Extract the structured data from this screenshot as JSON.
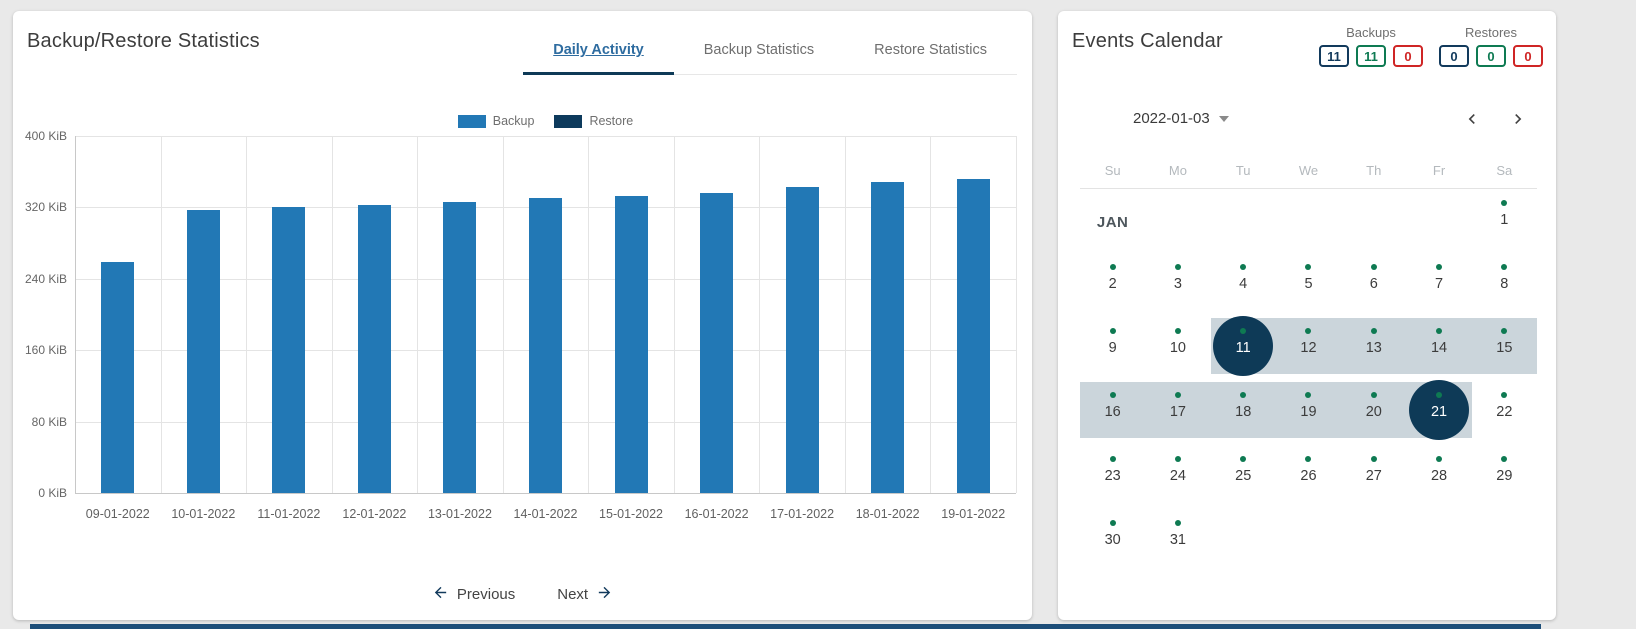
{
  "left_panel": {
    "title": "Backup/Restore Statistics",
    "tabs": [
      {
        "label": "Daily Activity",
        "active": true
      },
      {
        "label": "Backup Statistics",
        "active": false
      },
      {
        "label": "Restore Statistics",
        "active": false
      }
    ],
    "pager": {
      "previous_label": "Previous",
      "next_label": "Next"
    }
  },
  "chart_data": {
    "type": "bar",
    "title": "Daily Activity",
    "categories": [
      "09-01-2022",
      "10-01-2022",
      "11-01-2022",
      "12-01-2022",
      "13-01-2022",
      "14-01-2022",
      "15-01-2022",
      "16-01-2022",
      "17-01-2022",
      "18-01-2022",
      "19-01-2022"
    ],
    "series": [
      {
        "name": "Backup",
        "color": "#2278b5",
        "values": [
          259,
          317,
          320,
          323,
          326,
          330,
          333,
          336,
          343,
          349,
          352
        ]
      },
      {
        "name": "Restore",
        "color": "#0d3a5c",
        "values": [
          0,
          0,
          0,
          0,
          0,
          0,
          0,
          0,
          0,
          0,
          0
        ]
      }
    ],
    "unit": "KiB",
    "ylim": [
      0,
      400
    ],
    "yticks": [
      "400 KiB",
      "320 KiB",
      "240 KiB",
      "160 KiB",
      "80 KiB",
      "0 KiB"
    ],
    "grid": true,
    "legend_position": "top"
  },
  "right_panel": {
    "title": "Events Calendar",
    "counters": {
      "backups": {
        "label": "Backups",
        "badges": [
          {
            "value": "11",
            "role": "total"
          },
          {
            "value": "11",
            "role": "success"
          },
          {
            "value": "0",
            "role": "failed"
          }
        ]
      },
      "restores": {
        "label": "Restores",
        "badges": [
          {
            "value": "0",
            "role": "total"
          },
          {
            "value": "0",
            "role": "success"
          },
          {
            "value": "0",
            "role": "failed"
          }
        ]
      }
    },
    "date_picker": {
      "value": "2022-01-03"
    },
    "calendar": {
      "month_label": "JAN",
      "weekdays": [
        "Su",
        "Mo",
        "Tu",
        "We",
        "Th",
        "Fr",
        "Sa"
      ],
      "selected_days": [
        11,
        21
      ],
      "weeks": [
        {
          "month_label": "JAN",
          "days": [
            null,
            null,
            null,
            null,
            null,
            null,
            {
              "day": 1,
              "dot": true
            }
          ]
        },
        {
          "days": [
            {
              "day": 2,
              "dot": true
            },
            {
              "day": 3,
              "dot": true
            },
            {
              "day": 4,
              "dot": true
            },
            {
              "day": 5,
              "dot": true
            },
            {
              "day": 6,
              "dot": true
            },
            {
              "day": 7,
              "dot": true
            },
            {
              "day": 8,
              "dot": true
            }
          ]
        },
        {
          "band": {
            "from_col": 2,
            "to_col": 6
          },
          "days": [
            {
              "day": 9,
              "dot": true
            },
            {
              "day": 10,
              "dot": true
            },
            {
              "day": 11,
              "dot": true,
              "selected": true
            },
            {
              "day": 12,
              "dot": true
            },
            {
              "day": 13,
              "dot": true
            },
            {
              "day": 14,
              "dot": true
            },
            {
              "day": 15,
              "dot": true
            }
          ]
        },
        {
          "band": {
            "from_col": 0,
            "to_col": 5
          },
          "days": [
            {
              "day": 16,
              "dot": true
            },
            {
              "day": 17,
              "dot": true
            },
            {
              "day": 18,
              "dot": true
            },
            {
              "day": 19,
              "dot": true
            },
            {
              "day": 20,
              "dot": true
            },
            {
              "day": 21,
              "dot": true,
              "selected": true
            },
            {
              "day": 22,
              "dot": true
            }
          ]
        },
        {
          "days": [
            {
              "day": 23,
              "dot": true
            },
            {
              "day": 24,
              "dot": true
            },
            {
              "day": 25,
              "dot": true
            },
            {
              "day": 26,
              "dot": true
            },
            {
              "day": 27,
              "dot": true
            },
            {
              "day": 28,
              "dot": true
            },
            {
              "day": 29,
              "dot": true
            }
          ]
        },
        {
          "days": [
            {
              "day": 30,
              "dot": true
            },
            {
              "day": 31,
              "dot": true
            },
            null,
            null,
            null,
            null,
            null
          ]
        }
      ]
    }
  },
  "colors": {
    "accent_navy": "#0e3a57",
    "bar_blue": "#2278b5",
    "badge_total": "#123a5c",
    "badge_success": "#0e7a52",
    "badge_failed": "#cf2525",
    "range_band": "#cbd5db",
    "event_dot": "#0e7a52"
  }
}
